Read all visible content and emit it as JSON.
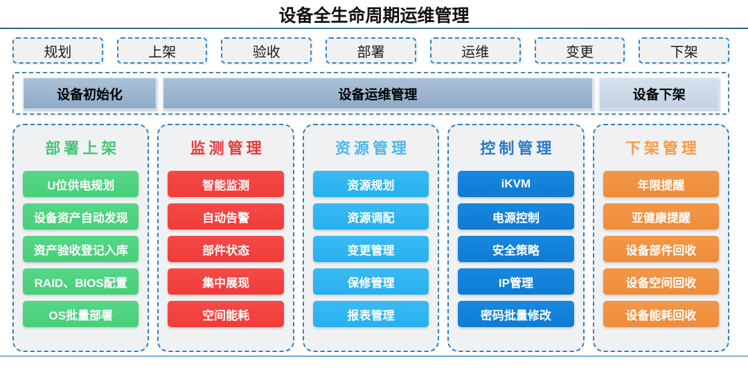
{
  "title": "设备全生命周期运维管理",
  "stages": [
    "规划",
    "上架",
    "验收",
    "部署",
    "运维",
    "变更",
    "下架"
  ],
  "banner": {
    "items": [
      {
        "label": "设备初始化"
      },
      {
        "label": "设备运维管理"
      },
      {
        "label": "设备下架"
      }
    ]
  },
  "columns": [
    {
      "title": "部署上架",
      "title_color": "#3fc873",
      "item_color": "#4dd381",
      "items": [
        "U位供电规划",
        "设备资产自动发现",
        "资产验收登记入库",
        "RAID、BIOS配置",
        "OS批量部署"
      ]
    },
    {
      "title": "监测管理",
      "title_color": "#e43b3b",
      "item_color": "#f3423f",
      "items": [
        "智能监测",
        "自动告警",
        "部件状态",
        "集中展现",
        "空间能耗"
      ]
    },
    {
      "title": "资源管理",
      "title_color": "#4cb9ec",
      "item_color": "#2fb5f1",
      "items": [
        "资源规划",
        "资源调配",
        "变更管理",
        "保修管理",
        "报表管理"
      ]
    },
    {
      "title": "控制管理",
      "title_color": "#2779c5",
      "item_color": "#1181da",
      "items": [
        "iKVM",
        "电源控制",
        "安全策略",
        "IP管理",
        "密码批量修改"
      ]
    },
    {
      "title": "下架管理",
      "title_color": "#f59b44",
      "item_color": "#ef9140",
      "items": [
        "年限提醒",
        "亚健康提醒",
        "设备部件回收",
        "设备空间回收",
        "设备能耗回收"
      ]
    }
  ],
  "colors": {
    "stage_border": "#2e86c1",
    "banner_border": "#4a85a8",
    "banner_box_dark": "#9bb4cd",
    "banner_box_light": "#cdd9e8",
    "column_border": "#2e7fc0",
    "top_line": "#35647f",
    "bottom_line": "#7aabce"
  }
}
